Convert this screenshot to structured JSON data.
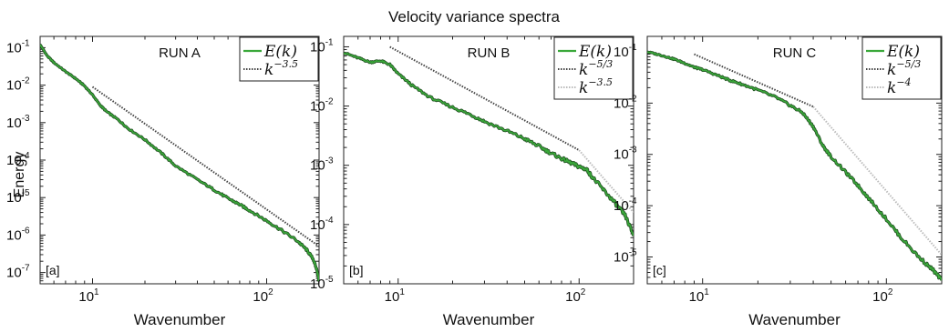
{
  "title": "Velocity variance spectra",
  "ylabel": "Energy",
  "chart_data": [
    {
      "type": "line",
      "panel_tag": "[a]",
      "run_label": "RUN A",
      "xlabel": "Wavenumber",
      "xscale": "log",
      "yscale": "log",
      "xlim": [
        5,
        200
      ],
      "ylim": [
        5e-08,
        0.2
      ],
      "x_ticks": [
        {
          "base": "10",
          "exp": "1",
          "value": 10
        },
        {
          "base": "10",
          "exp": "2",
          "value": 100
        }
      ],
      "y_ticks": [
        {
          "base": "10",
          "exp": "-7",
          "value": 1e-07
        },
        {
          "base": "10",
          "exp": "-6",
          "value": 1e-06
        },
        {
          "base": "10",
          "exp": "-5",
          "value": 1e-05
        },
        {
          "base": "10",
          "exp": "-4",
          "value": 0.0001
        },
        {
          "base": "10",
          "exp": "-3",
          "value": 0.001
        },
        {
          "base": "10",
          "exp": "-2",
          "value": 0.01
        },
        {
          "base": "10",
          "exp": "-1",
          "value": 0.1
        }
      ],
      "legend_position": "top-right",
      "series": [
        {
          "name": "E(k)",
          "legend_base": "E(k)",
          "legend_exp": "",
          "style": "spectrum",
          "color": "#3aa83a",
          "x": [
            5,
            5.5,
            6,
            7,
            8,
            9,
            10,
            11,
            12,
            14,
            16,
            20,
            25,
            30,
            40,
            50,
            60,
            70,
            80,
            100,
            120,
            150,
            170,
            185,
            195,
            200
          ],
          "y": [
            0.12,
            0.06,
            0.04,
            0.023,
            0.015,
            0.0095,
            0.0055,
            0.003,
            0.002,
            0.0012,
            0.0007,
            0.00035,
            0.00015,
            7e-05,
            3e-05,
            1.6e-05,
            9.5e-06,
            6.5e-06,
            4.5e-06,
            2.4e-06,
            1.4e-06,
            7e-07,
            4e-07,
            2.3e-07,
            1.1e-07,
            6e-08
          ]
        },
        {
          "name": "k^-3.5",
          "legend_base": "k",
          "legend_exp": "−3.5",
          "style": "reference-dark",
          "color": "#444444",
          "x": [
            10,
            200
          ],
          "y": [
            0.009,
            5e-07
          ]
        }
      ]
    },
    {
      "type": "line",
      "panel_tag": "[b]",
      "run_label": "RUN B",
      "xlabel": "Wavenumber",
      "xscale": "log",
      "yscale": "log",
      "xlim": [
        5,
        200
      ],
      "ylim": [
        1e-05,
        0.15
      ],
      "x_ticks": [
        {
          "base": "10",
          "exp": "1",
          "value": 10
        },
        {
          "base": "10",
          "exp": "2",
          "value": 100
        }
      ],
      "y_ticks": [
        {
          "base": "10",
          "exp": "-5",
          "value": 1e-05
        },
        {
          "base": "10",
          "exp": "-4",
          "value": 0.0001
        },
        {
          "base": "10",
          "exp": "-3",
          "value": 0.001
        },
        {
          "base": "10",
          "exp": "-2",
          "value": 0.01
        },
        {
          "base": "10",
          "exp": "-1",
          "value": 0.1
        }
      ],
      "legend_position": "top-right",
      "series": [
        {
          "name": "E(k)",
          "legend_base": "E(k)",
          "legend_exp": "",
          "style": "spectrum",
          "color": "#3aa83a",
          "x": [
            5,
            6,
            7,
            8,
            9,
            10,
            12,
            15,
            20,
            25,
            30,
            40,
            50,
            60,
            70,
            80,
            90,
            100,
            110,
            120,
            140,
            160,
            180,
            200
          ],
          "y": [
            0.08,
            0.065,
            0.055,
            0.058,
            0.05,
            0.035,
            0.022,
            0.014,
            0.0095,
            0.0072,
            0.0055,
            0.0038,
            0.0028,
            0.0021,
            0.0016,
            0.0013,
            0.0011,
            0.00095,
            0.00085,
            0.0006,
            0.00035,
            0.00022,
            0.00014,
            6.5e-05
          ]
        },
        {
          "name": "k^-5/3",
          "legend_base": "k",
          "legend_exp": "−5/3",
          "style": "reference-dark",
          "color": "#444444",
          "x": [
            9,
            100
          ],
          "y": [
            0.1,
            0.0018
          ]
        },
        {
          "name": "k^-3.5",
          "legend_base": "k",
          "legend_exp": "−3.5",
          "style": "reference-light",
          "color": "#bbbbbb",
          "x": [
            100,
            200
          ],
          "y": [
            0.0018,
            0.00016
          ]
        }
      ]
    },
    {
      "type": "line",
      "panel_tag": "[c]",
      "run_label": "RUN C",
      "xlabel": "Wavenumber",
      "xscale": "log",
      "yscale": "log",
      "xlim": [
        5,
        200
      ],
      "ylim": [
        3e-06,
        0.2
      ],
      "x_ticks": [
        {
          "base": "10",
          "exp": "1",
          "value": 10
        },
        {
          "base": "10",
          "exp": "2",
          "value": 100
        }
      ],
      "y_ticks": [
        {
          "base": "10",
          "exp": "-5",
          "value": 1e-05
        },
        {
          "base": "10",
          "exp": "-4",
          "value": 0.0001
        },
        {
          "base": "10",
          "exp": "-3",
          "value": 0.001
        },
        {
          "base": "10",
          "exp": "-2",
          "value": 0.01
        },
        {
          "base": "10",
          "exp": "-1",
          "value": 0.1
        }
      ],
      "legend_position": "top-right",
      "series": [
        {
          "name": "E(k)",
          "legend_base": "E(k)",
          "legend_exp": "",
          "style": "spectrum",
          "color": "#3aa83a",
          "x": [
            5,
            6,
            7,
            8,
            9,
            10,
            12,
            14,
            16,
            20,
            25,
            30,
            35,
            40,
            45,
            50,
            60,
            70,
            80,
            100,
            120,
            150,
            180,
            200
          ],
          "y": [
            0.1,
            0.085,
            0.072,
            0.06,
            0.05,
            0.045,
            0.035,
            0.028,
            0.024,
            0.018,
            0.013,
            0.009,
            0.0065,
            0.0035,
            0.0015,
            0.0009,
            0.00045,
            0.00025,
            0.00014,
            5.5e-05,
            2.4e-05,
            1e-05,
            5.5e-06,
            3.5e-06
          ]
        },
        {
          "name": "k^-5/3",
          "legend_base": "k",
          "legend_exp": "−5/3",
          "style": "reference-dark",
          "color": "#444444",
          "x": [
            9,
            40
          ],
          "y": [
            0.09,
            0.0085
          ]
        },
        {
          "name": "k^-4",
          "legend_base": "k",
          "legend_exp": "−4",
          "style": "reference-light",
          "color": "#bbbbbb",
          "x": [
            40,
            200
          ],
          "y": [
            0.0085,
            1.1e-05
          ]
        }
      ]
    }
  ]
}
